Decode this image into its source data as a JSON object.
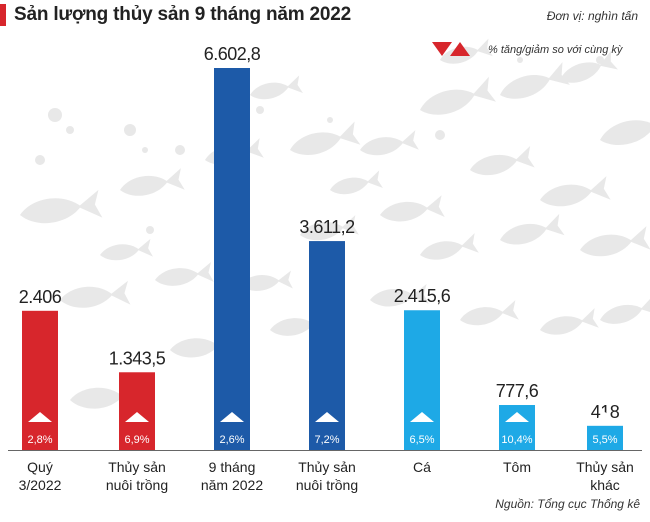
{
  "header": {
    "title": "Sản lượng thủy sản 9 tháng năm 2022",
    "unit": "Đơn vị: nghìn tấn"
  },
  "legend": {
    "label": "% tăng/giảm so với cùng kỳ"
  },
  "footer": {
    "source": "Nguồn: Tổng cục Thống kê"
  },
  "colors": {
    "red": "#d7262c",
    "blue": "#1d5aa8",
    "cyan": "#1ea9e6",
    "background_fish": "#e8e8e8"
  },
  "chart_data": {
    "type": "bar",
    "title": "Sản lượng thủy sản 9 tháng năm 2022",
    "ylabel": "nghìn tấn",
    "ylim": [
      0,
      7000
    ],
    "categories": [
      [
        "Quý",
        "3/2022"
      ],
      [
        "Thủy sản",
        "nuôi trồng"
      ],
      [
        "9 tháng",
        "năm 2022"
      ],
      [
        "Thủy sản",
        "nuôi trồng"
      ],
      [
        "Cá"
      ],
      [
        "Tôm"
      ],
      [
        "Thủy sản",
        "khác"
      ]
    ],
    "values": [
      2406,
      1343.5,
      6602.8,
      3611.2,
      2415.6,
      777.6,
      418
    ],
    "value_labels": [
      "2.406",
      "1.343,5",
      "6.602,8",
      "3.611,2",
      "2.415,6",
      "777,6",
      "418"
    ],
    "growth_labels": [
      "2,8%",
      "6,9%",
      "2,6%",
      "7,2%",
      "6,5%",
      "10,4%",
      "5,5%"
    ],
    "bar_colors": [
      "red",
      "red",
      "blue",
      "blue",
      "cyan",
      "cyan",
      "cyan"
    ]
  }
}
